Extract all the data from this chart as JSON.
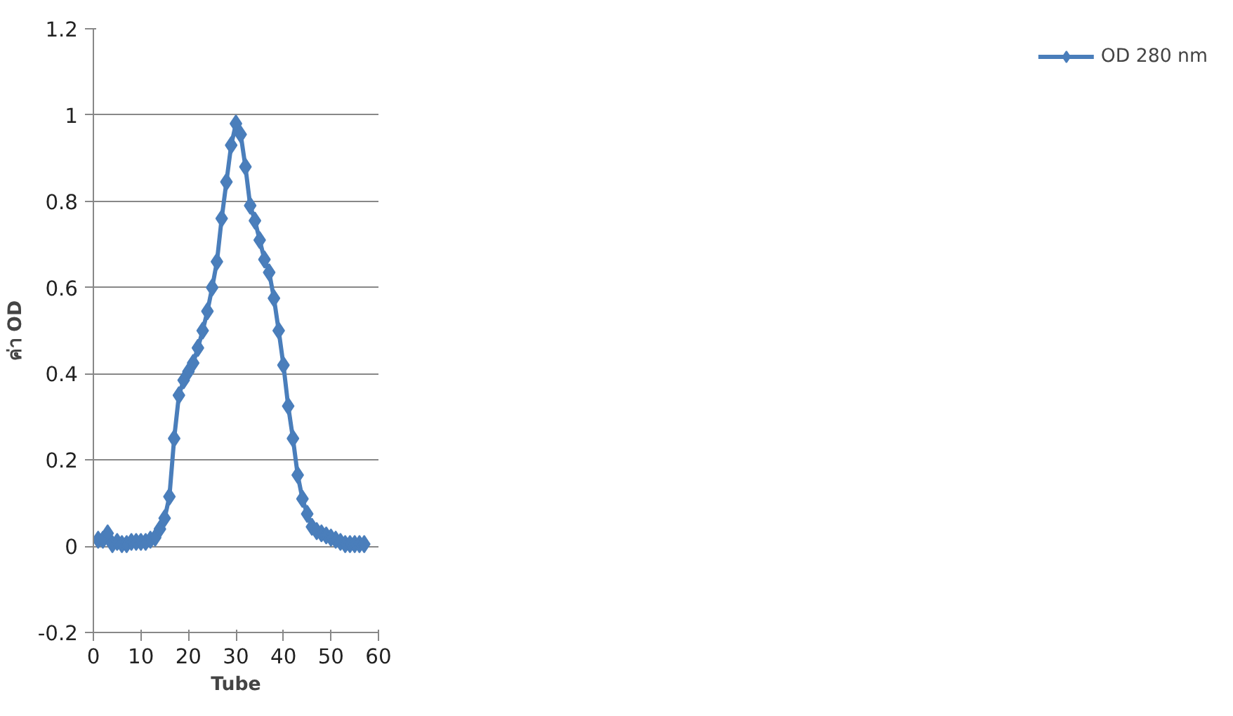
{
  "chart_data": {
    "type": "line",
    "xlabel": "Tube",
    "ylabel": "ค่า OD",
    "x": [
      1,
      2,
      3,
      4,
      5,
      6,
      7,
      8,
      9,
      10,
      11,
      12,
      13,
      14,
      15,
      16,
      17,
      18,
      19,
      20,
      21,
      22,
      23,
      24,
      25,
      26,
      27,
      28,
      29,
      30,
      31,
      32,
      33,
      34,
      35,
      36,
      37,
      38,
      39,
      40,
      41,
      42,
      43,
      44,
      45,
      46,
      47,
      48,
      49,
      50,
      51,
      52,
      53,
      54,
      55,
      56,
      57
    ],
    "series": [
      {
        "name": "OD 280 nm",
        "color": "#4a7ebb",
        "values": [
          0.015,
          0.015,
          0.03,
          0.005,
          0.01,
          0.005,
          0.005,
          0.01,
          0.01,
          0.01,
          0.01,
          0.015,
          0.02,
          0.04,
          0.065,
          0.115,
          0.25,
          0.35,
          0.385,
          0.405,
          0.425,
          0.46,
          0.5,
          0.545,
          0.6,
          0.66,
          0.76,
          0.845,
          0.93,
          0.98,
          0.955,
          0.88,
          0.79,
          0.755,
          0.71,
          0.665,
          0.635,
          0.575,
          0.5,
          0.42,
          0.325,
          0.25,
          0.165,
          0.11,
          0.075,
          0.045,
          0.035,
          0.03,
          0.025,
          0.02,
          0.015,
          0.01,
          0.005,
          0.005,
          0.005,
          0.005,
          0.005
        ]
      }
    ],
    "xlim": [
      0,
      60
    ],
    "xticks": [
      0,
      10,
      20,
      30,
      40,
      50,
      60
    ],
    "ylim": [
      -0.2,
      1.2
    ],
    "yticks": [
      -0.2,
      0,
      0.2,
      0.4,
      0.6,
      0.8,
      1,
      1.2
    ],
    "grid": "y",
    "legend": "right",
    "marker": "diamond",
    "line_style": "solid"
  }
}
